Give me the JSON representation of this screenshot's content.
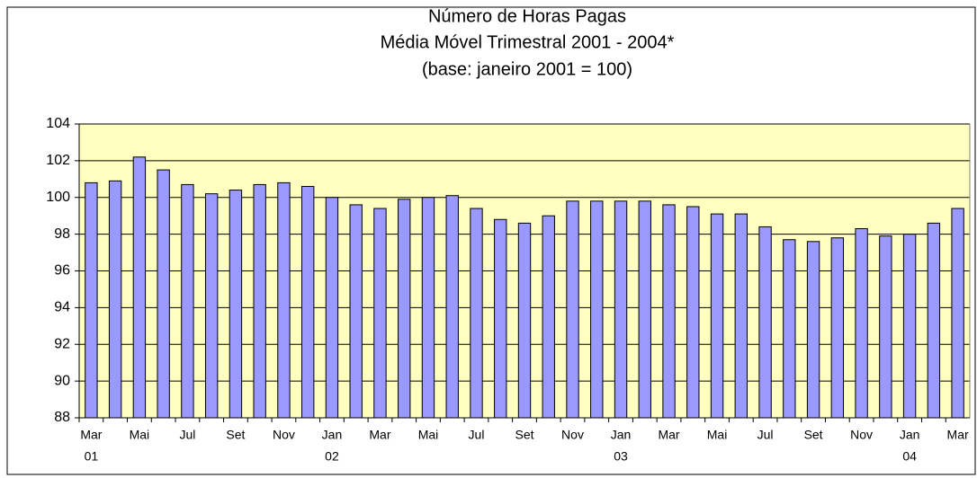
{
  "chart_data": {
    "type": "bar",
    "title": "Número de Horas Pagas",
    "subtitle": [
      "Média Móvel Trimestral  2001 - 2004*",
      "(base: janeiro 2001 = 100)"
    ],
    "categories": [
      "Mar",
      null,
      "Mai",
      null,
      "Jul",
      null,
      "Set",
      null,
      "Nov",
      null,
      "Jan",
      null,
      "Mar",
      null,
      "Mai",
      null,
      "Jul",
      null,
      "Set",
      null,
      "Nov",
      null,
      "Jan",
      null,
      "Mar",
      null,
      "Mai",
      null,
      "Jul",
      null,
      "Set",
      null,
      "Nov",
      null,
      "Jan",
      null,
      "Mar"
    ],
    "category_years": [
      "01",
      null,
      null,
      null,
      null,
      null,
      null,
      null,
      null,
      null,
      "02",
      null,
      null,
      null,
      null,
      null,
      null,
      null,
      null,
      null,
      null,
      null,
      "03",
      null,
      null,
      null,
      null,
      null,
      null,
      null,
      null,
      null,
      null,
      null,
      "04",
      null,
      null
    ],
    "values": [
      100.8,
      100.9,
      102.2,
      101.5,
      100.7,
      100.2,
      100.4,
      100.7,
      100.8,
      100.6,
      100.0,
      99.6,
      99.4,
      99.9,
      100.0,
      100.1,
      99.4,
      98.8,
      98.6,
      99.0,
      99.8,
      99.8,
      99.8,
      99.8,
      99.6,
      99.5,
      99.1,
      99.1,
      98.4,
      97.7,
      97.6,
      97.8,
      98.3,
      97.9,
      98.0,
      98.6,
      99.4
    ],
    "color": "#9999ff",
    "ylim": [
      88,
      104
    ],
    "yticks": [
      88,
      90,
      92,
      94,
      96,
      98,
      100,
      102,
      104
    ],
    "grid": true
  }
}
